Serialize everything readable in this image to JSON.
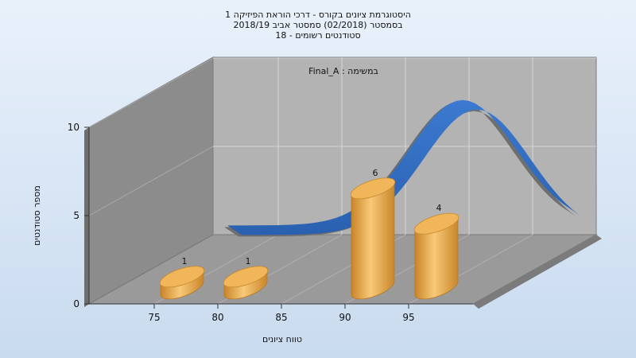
{
  "chart_data": {
    "type": "bar",
    "title_lines": [
      "היסטוגרמת ציונים בקורס - דרכי הוראת הפיזיקה 1",
      "בסמסטר  (02/2018)  סמסטר אביב 2018/19",
      "סטודנטים רשומים - 18"
    ],
    "inner_label": "במשימה : Final_A",
    "xlabel": "טווח ציונים",
    "ylabel": "מספר סטודנטים",
    "x_ticks": [
      "75",
      "80",
      "85",
      "90",
      "95"
    ],
    "y_ticks": [
      "0",
      "5",
      "10"
    ],
    "ylim": [
      0,
      10
    ],
    "bars": [
      {
        "x": 77.5,
        "value": 1,
        "label": "1"
      },
      {
        "x": 82.5,
        "value": 1,
        "label": "1"
      },
      {
        "x": 92.5,
        "value": 6,
        "label": "6"
      },
      {
        "x": 97.5,
        "value": 4,
        "label": "4"
      }
    ],
    "curve_type": "normal-distribution",
    "grid": true,
    "colors": {
      "bar": "#e7a43c",
      "curve": "#2f6bc0",
      "back_wall": "#b3b3b3",
      "side_wall": "#8c8c8c",
      "floor": "#9a9a9a"
    }
  }
}
